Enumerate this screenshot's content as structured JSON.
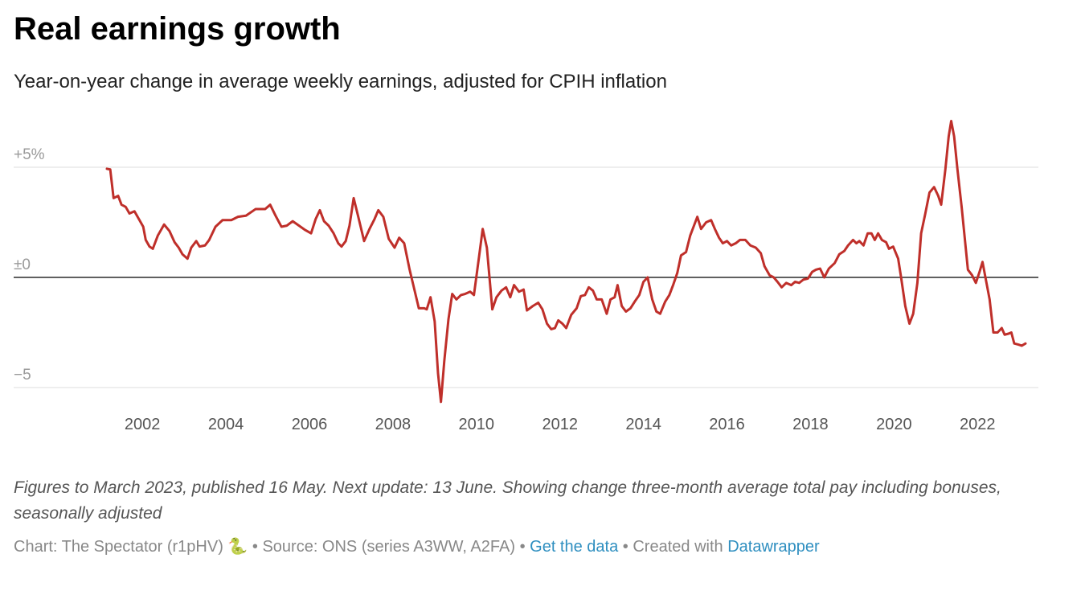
{
  "chart_data": {
    "type": "line",
    "title": "Real earnings growth",
    "subtitle": "Year-on-year change in average weekly earnings, adjusted for CPIH inflation",
    "color": "#bf2f2a",
    "grid": true,
    "xlim": [
      2001.15,
      2023.15
    ],
    "xticks": [
      2002,
      2004,
      2006,
      2008,
      2010,
      2012,
      2014,
      2016,
      2018,
      2020,
      2022
    ],
    "ylim": [
      -5,
      5
    ],
    "yticks": [
      {
        "value": -5,
        "label": "−5"
      },
      {
        "value": 0,
        "label": "±0"
      },
      {
        "value": 5,
        "label": "+5%"
      }
    ],
    "x": [
      2001.15,
      2001.23,
      2001.31,
      2001.42,
      2001.5,
      2001.6,
      2001.69,
      2001.81,
      2001.9,
      2002.02,
      2002.08,
      2002.17,
      2002.25,
      2002.37,
      2002.52,
      2002.65,
      2002.77,
      2002.87,
      2002.96,
      2003.08,
      2003.17,
      2003.29,
      2003.37,
      2003.5,
      2003.6,
      2003.75,
      2003.92,
      2004.13,
      2004.29,
      2004.48,
      2004.71,
      2004.94,
      2005.06,
      2005.19,
      2005.33,
      2005.46,
      2005.6,
      2005.75,
      2005.9,
      2006.04,
      2006.15,
      2006.25,
      2006.35,
      2006.46,
      2006.58,
      2006.69,
      2006.77,
      2006.87,
      2006.96,
      2007.06,
      2007.17,
      2007.31,
      2007.44,
      2007.56,
      2007.65,
      2007.77,
      2007.9,
      2008.04,
      2008.15,
      2008.27,
      2008.4,
      2008.52,
      2008.62,
      2008.75,
      2008.81,
      2008.9,
      2009.0,
      2009.08,
      2009.15,
      2009.23,
      2009.33,
      2009.42,
      2009.52,
      2009.63,
      2009.73,
      2009.85,
      2009.94,
      2010.06,
      2010.15,
      2010.25,
      2010.38,
      2010.48,
      2010.6,
      2010.71,
      2010.81,
      2010.9,
      2011.02,
      2011.13,
      2011.21,
      2011.35,
      2011.48,
      2011.58,
      2011.69,
      2011.79,
      2011.88,
      2011.96,
      2012.06,
      2012.15,
      2012.27,
      2012.4,
      2012.5,
      2012.6,
      2012.69,
      2012.79,
      2012.88,
      2013.0,
      2013.12,
      2013.21,
      2013.31,
      2013.38,
      2013.48,
      2013.58,
      2013.69,
      2013.79,
      2013.9,
      2014.0,
      2014.1,
      2014.21,
      2014.31,
      2014.4,
      2014.52,
      2014.62,
      2014.71,
      2014.81,
      2014.9,
      2015.02,
      2015.12,
      2015.19,
      2015.29,
      2015.38,
      2015.5,
      2015.62,
      2015.71,
      2015.81,
      2015.9,
      2016.0,
      2016.1,
      2016.21,
      2016.31,
      2016.44,
      2016.56,
      2016.69,
      2016.81,
      2016.9,
      2017.02,
      2017.12,
      2017.21,
      2017.31,
      2017.42,
      2017.54,
      2017.63,
      2017.73,
      2017.83,
      2017.94,
      2018.04,
      2018.13,
      2018.23,
      2018.33,
      2018.44,
      2018.58,
      2018.69,
      2018.81,
      2018.9,
      2019.02,
      2019.1,
      2019.17,
      2019.27,
      2019.37,
      2019.46,
      2019.54,
      2019.62,
      2019.71,
      2019.81,
      2019.88,
      2019.98,
      2020.1,
      2020.17,
      2020.27,
      2020.37,
      2020.46,
      2020.56,
      2020.65,
      2020.75,
      2020.85,
      2020.96,
      2021.06,
      2021.13,
      2021.23,
      2021.31,
      2021.37,
      2021.44,
      2021.52,
      2021.62,
      2021.77,
      2021.87,
      2021.96,
      2022.04,
      2022.12,
      2022.19,
      2022.29,
      2022.38,
      2022.48,
      2022.58,
      2022.65,
      2022.75,
      2022.81,
      2022.88,
      2022.98,
      2023.06,
      2023.15
    ],
    "values": [
      4.93,
      4.9,
      3.6,
      3.7,
      3.3,
      3.2,
      2.9,
      3.0,
      2.7,
      2.3,
      1.7,
      1.4,
      1.3,
      1.9,
      2.4,
      2.1,
      1.6,
      1.35,
      1.05,
      0.85,
      1.35,
      1.65,
      1.4,
      1.45,
      1.7,
      2.3,
      2.6,
      2.6,
      2.75,
      2.8,
      3.1,
      3.1,
      3.3,
      2.8,
      2.3,
      2.35,
      2.55,
      2.35,
      2.15,
      2.0,
      2.65,
      3.05,
      2.55,
      2.35,
      2.0,
      1.55,
      1.4,
      1.65,
      2.35,
      3.6,
      2.75,
      1.65,
      2.2,
      2.65,
      3.05,
      2.75,
      1.75,
      1.35,
      1.8,
      1.55,
      0.35,
      -0.6,
      -1.4,
      -1.4,
      -1.45,
      -0.9,
      -2.0,
      -4.35,
      -5.65,
      -3.8,
      -1.9,
      -0.75,
      -1.0,
      -0.8,
      -0.75,
      -0.65,
      -0.8,
      0.9,
      2.2,
      1.35,
      -1.45,
      -0.9,
      -0.6,
      -0.45,
      -0.9,
      -0.35,
      -0.65,
      -0.55,
      -1.5,
      -1.3,
      -1.15,
      -1.45,
      -2.1,
      -2.35,
      -2.3,
      -1.95,
      -2.1,
      -2.3,
      -1.7,
      -1.4,
      -0.85,
      -0.8,
      -0.45,
      -0.6,
      -1.0,
      -1.0,
      -1.65,
      -1.0,
      -0.9,
      -0.35,
      -1.3,
      -1.55,
      -1.4,
      -1.1,
      -0.8,
      -0.2,
      0.0,
      -1.0,
      -1.55,
      -1.65,
      -1.1,
      -0.8,
      -0.35,
      0.2,
      1.0,
      1.15,
      1.9,
      2.25,
      2.75,
      2.2,
      2.5,
      2.6,
      2.2,
      1.8,
      1.55,
      1.65,
      1.45,
      1.55,
      1.7,
      1.7,
      1.45,
      1.35,
      1.1,
      0.5,
      0.1,
      0.0,
      -0.2,
      -0.45,
      -0.25,
      -0.35,
      -0.2,
      -0.25,
      -0.1,
      -0.05,
      0.25,
      0.35,
      0.4,
      0.0,
      0.4,
      0.65,
      1.05,
      1.2,
      1.45,
      1.7,
      1.55,
      1.65,
      1.45,
      2.0,
      2.0,
      1.7,
      2.0,
      1.7,
      1.6,
      1.3,
      1.4,
      0.85,
      0.0,
      -1.3,
      -2.1,
      -1.65,
      -0.25,
      2.0,
      2.9,
      3.85,
      4.1,
      3.7,
      3.3,
      4.9,
      6.4,
      7.1,
      6.4,
      4.9,
      3.2,
      0.35,
      0.1,
      -0.25,
      0.2,
      0.7,
      0.0,
      -1.0,
      -2.5,
      -2.5,
      -2.3,
      -2.6,
      -2.55,
      -2.5,
      -3.0,
      -3.05,
      -3.1,
      -3.0
    ],
    "notes": "Figures to March 2023, published 16 May. Next update: 13 June. Showing change three-month average total pay including bonuses, seasonally adjusted",
    "byline": "Chart: The Spectator (r1pHV) 🐍",
    "separator": "•",
    "source": "Source: ONS (series A3WW, A2FA)",
    "get_data": "Get the data",
    "created_with": "Created with",
    "tool": "Datawrapper"
  }
}
